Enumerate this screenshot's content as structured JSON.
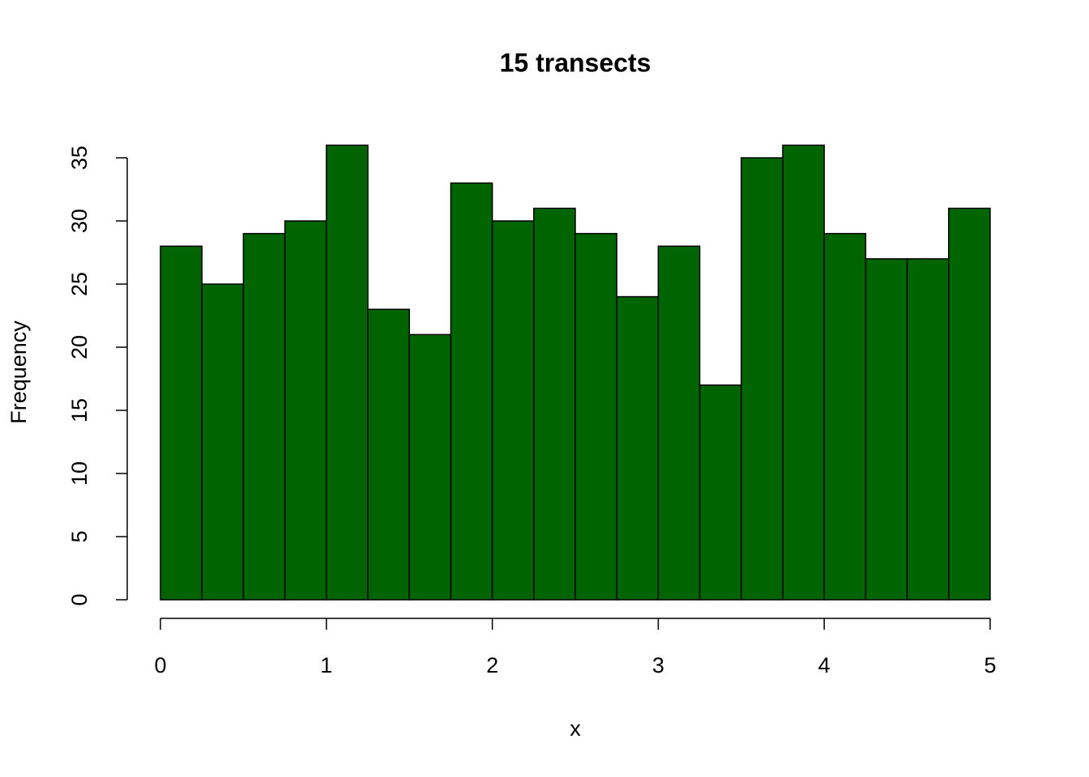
{
  "chart_data": {
    "type": "histogram",
    "title": "15 transects",
    "xlabel": "x",
    "ylabel": "Frequency",
    "bins": [
      0,
      0.25,
      0.5,
      0.75,
      1,
      1.25,
      1.5,
      1.75,
      2,
      2.25,
      2.5,
      2.75,
      3,
      3.25,
      3.5,
      3.75,
      4,
      4.25,
      4.5,
      4.75,
      5
    ],
    "values": [
      28,
      25,
      29,
      30,
      36,
      23,
      21,
      33,
      30,
      31,
      29,
      24,
      28,
      17,
      35,
      36,
      29,
      27,
      27,
      31
    ],
    "color": "#006400",
    "xlim": [
      0,
      5
    ],
    "ylim": [
      0,
      36
    ],
    "xticks": [
      0,
      1,
      2,
      3,
      4,
      5
    ],
    "yticks": [
      0,
      5,
      10,
      15,
      20,
      25,
      30,
      35
    ]
  }
}
